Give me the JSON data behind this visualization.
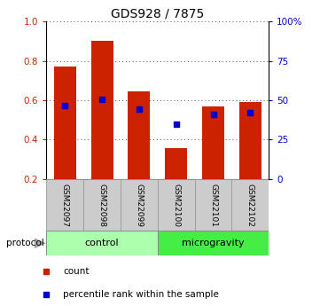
{
  "title": "GDS928 / 7875",
  "samples": [
    "GSM22097",
    "GSM22098",
    "GSM22099",
    "GSM22100",
    "GSM22101",
    "GSM22102"
  ],
  "red_bar_top": [
    0.77,
    0.9,
    0.645,
    0.355,
    0.57,
    0.59
  ],
  "red_bar_bottom": [
    0.2,
    0.2,
    0.2,
    0.2,
    0.2,
    0.2
  ],
  "blue_dot_y": [
    0.575,
    0.603,
    0.553,
    0.478,
    0.528,
    0.535
  ],
  "blue_dot_visible": [
    true,
    true,
    true,
    true,
    true,
    true
  ],
  "ylim": [
    0.2,
    1.0
  ],
  "yticks_left": [
    0.2,
    0.4,
    0.6,
    0.8,
    1.0
  ],
  "yticks_right": [
    0,
    25,
    50,
    75,
    100
  ],
  "yticks_right_labels": [
    "0",
    "25",
    "50",
    "75",
    "100%"
  ],
  "left_color": "#cc2200",
  "right_color": "#0000cc",
  "bar_color": "#cc2200",
  "blue_color": "#0000cc",
  "control_label": "control",
  "microgravity_label": "microgravity",
  "control_bg": "#aaffaa",
  "microgravity_bg": "#44ee44",
  "protocol_label": "protocol",
  "legend_count": "count",
  "legend_percentile": "percentile rank within the sample",
  "grid_color": "#555555",
  "bar_width": 0.6,
  "blue_marker_size": 4
}
